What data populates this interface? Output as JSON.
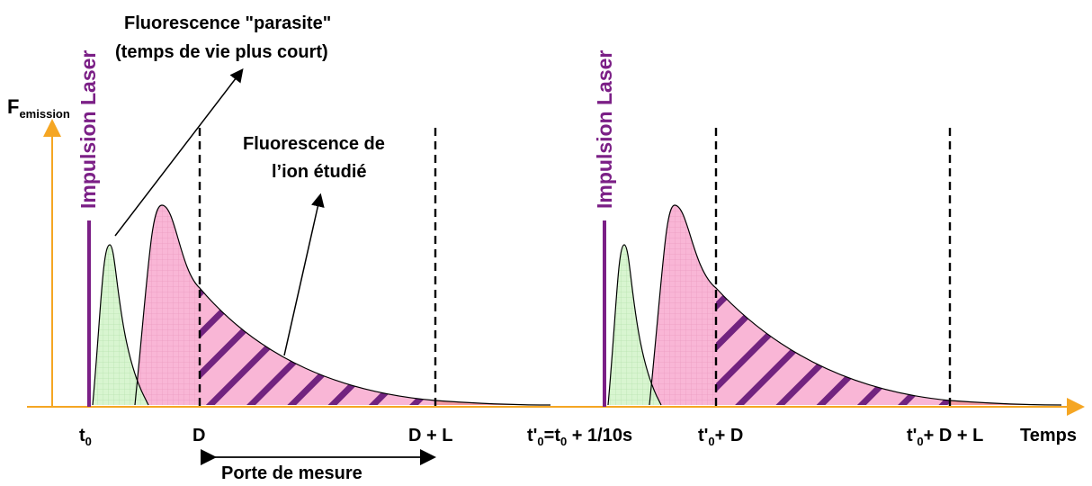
{
  "axis": {
    "y_label_main": "F",
    "y_label_sub": "emission",
    "x_label": "Temps",
    "axis_color": "#f5a623"
  },
  "annotations": {
    "parasite_line1": "Fluorescence \"parasite\"",
    "parasite_line2": "(temps de vie plus court)",
    "ion_line1": "Fluorescence de",
    "ion_line2": "l’ion étudié",
    "gate_label": "Porte de mesure"
  },
  "pulses": [
    {
      "label": "Impulsion Laser"
    },
    {
      "label": "Impulsion Laser"
    }
  ],
  "ticks": {
    "t0_main": "t",
    "t0_sub": "0",
    "d": "D",
    "dl": "D + L",
    "t0p_a": "t'",
    "t0p_a_sub": "0",
    "t0p_b": "=t",
    "t0p_b_sub": "0",
    "t0p_c": " + 1/10s",
    "t0pd_a": "t'",
    "t0pd_a_sub": "0",
    "t0pd_b": "+ D",
    "t0pdl_a": "t'",
    "t0pdl_a_sub": "0",
    "t0pdl_b": "+ D + L"
  },
  "colors": {
    "pulse": "#7b1f86",
    "parasite_fill": "#d8f5d0",
    "ion_fill": "#f9b6d6",
    "hatch": "#6a1b7a"
  }
}
